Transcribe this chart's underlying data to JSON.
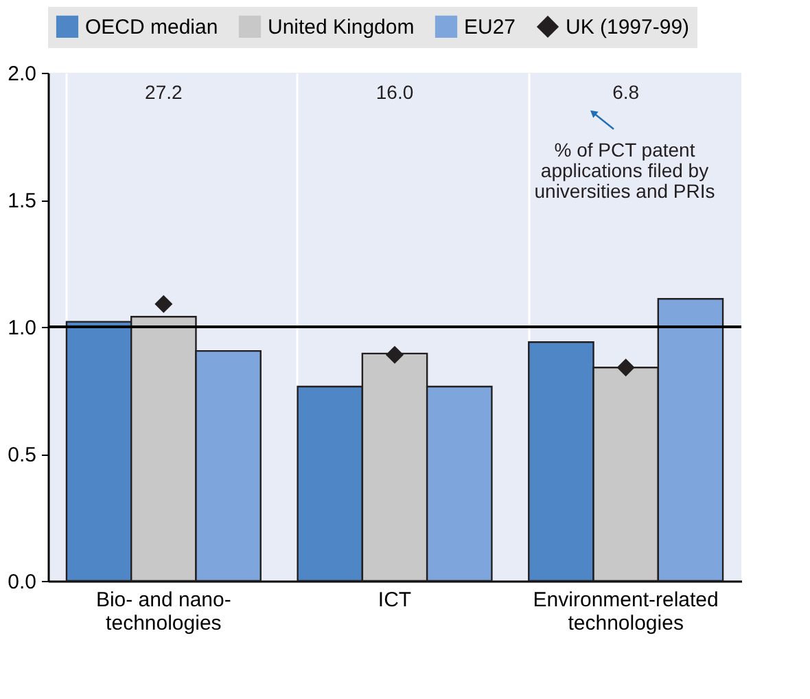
{
  "chart_data": {
    "type": "bar",
    "categories": [
      "Bio- and nano-\ntechnologies",
      "ICT",
      "Environment-related\ntechnologies"
    ],
    "series": [
      {
        "name": "OECD median",
        "color": "#4f86c6",
        "values": [
          1.02,
          0.765,
          0.94
        ]
      },
      {
        "name": "United Kingdom",
        "color": "#c8c8c8",
        "values": [
          1.04,
          0.895,
          0.84
        ]
      },
      {
        "name": "EU27",
        "color": "#7fa6dc",
        "values": [
          0.905,
          0.765,
          1.11
        ]
      },
      {
        "name": "UK (1997-99)",
        "color": "#231f20",
        "type": "scatter",
        "marker": "diamond",
        "x": [
          "Bio- and nano-\ntechnologies",
          "ICT",
          "Environment-related\ntechnologies"
        ],
        "values": [
          1.09,
          0.89,
          0.84
        ]
      }
    ],
    "ylim": [
      0,
      2.0
    ],
    "yticks": [
      {
        "value": 0,
        "label": "0.0"
      },
      {
        "value": 0.5,
        "label": "0.5"
      },
      {
        "value": 1.0,
        "label": "1.0"
      },
      {
        "value": 1.5,
        "label": "1.5"
      },
      {
        "value": 2.0,
        "label": "2.0"
      }
    ],
    "ref_lines": [
      {
        "axis": "y",
        "value": 1.0,
        "color": "#000000"
      }
    ],
    "annotations": [
      "27.2",
      "16.0",
      "6.8",
      "% of PCT patent\napplications  filed by\nuniversities and PRIs"
    ],
    "grid": "x",
    "legend": "top"
  }
}
